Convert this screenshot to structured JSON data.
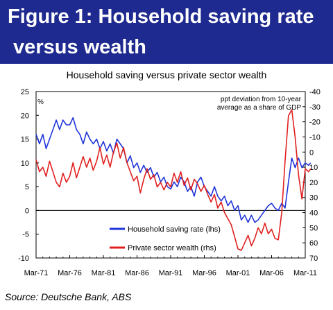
{
  "figure": {
    "heading_line1": "Figure 1: Household saving rate",
    "heading_line2": " versus wealth",
    "source": "Source: Deutsche Bank, ABS"
  },
  "chart_data": {
    "type": "line",
    "title": "Household saving versus private sector wealth",
    "left_axis_unit": "%",
    "right_axis_note": [
      "ppt deviation from 10-year",
      "average as a share of GDP"
    ],
    "left_axis": {
      "min": -10,
      "max": 25,
      "ticks": [
        -10,
        -5,
        0,
        5,
        10,
        15,
        20,
        25
      ]
    },
    "right_axis": {
      "inverted": true,
      "min": -40,
      "max": 70,
      "ticks": [
        -40,
        -30,
        -20,
        -10,
        0,
        10,
        20,
        30,
        40,
        50,
        60,
        70
      ]
    },
    "x_axis": {
      "min": 1971,
      "max": 2011,
      "tick_labels": [
        "Mar-71",
        "Mar-76",
        "Mar-81",
        "Mar-86",
        "Mar-91",
        "Mar-96",
        "Mar-01",
        "Mar-06",
        "Mar-11"
      ]
    },
    "series": [
      {
        "name": "Household saving rate (lhs)",
        "axis": "left",
        "color": "#1f35d8",
        "points": [
          [
            1971.0,
            16
          ],
          [
            1971.5,
            14
          ],
          [
            1972.0,
            16
          ],
          [
            1972.5,
            13
          ],
          [
            1973.0,
            15
          ],
          [
            1973.5,
            17
          ],
          [
            1974.0,
            19
          ],
          [
            1974.5,
            17
          ],
          [
            1975.0,
            19
          ],
          [
            1975.5,
            18
          ],
          [
            1976.0,
            18
          ],
          [
            1976.5,
            19.5
          ],
          [
            1977.0,
            17
          ],
          [
            1977.5,
            16
          ],
          [
            1978.0,
            14
          ],
          [
            1978.5,
            16.5
          ],
          [
            1979.0,
            15
          ],
          [
            1979.5,
            14
          ],
          [
            1980.0,
            15
          ],
          [
            1980.5,
            13
          ],
          [
            1981.0,
            14.5
          ],
          [
            1981.5,
            12.5
          ],
          [
            1982.0,
            14
          ],
          [
            1982.5,
            12
          ],
          [
            1983.0,
            15
          ],
          [
            1983.5,
            14
          ],
          [
            1984.0,
            13
          ],
          [
            1984.5,
            10
          ],
          [
            1985.0,
            11.5
          ],
          [
            1985.5,
            9
          ],
          [
            1986.0,
            10
          ],
          [
            1986.5,
            8
          ],
          [
            1987.0,
            9.5
          ],
          [
            1987.5,
            8
          ],
          [
            1988.0,
            9
          ],
          [
            1988.5,
            7
          ],
          [
            1989.0,
            8
          ],
          [
            1989.5,
            6
          ],
          [
            1990.0,
            7
          ],
          [
            1990.5,
            5
          ],
          [
            1991.0,
            4.5
          ],
          [
            1991.5,
            6
          ],
          [
            1992.0,
            5
          ],
          [
            1992.5,
            7
          ],
          [
            1993.0,
            6
          ],
          [
            1993.5,
            4
          ],
          [
            1994.0,
            5
          ],
          [
            1994.5,
            3
          ],
          [
            1995.0,
            6
          ],
          [
            1995.5,
            7
          ],
          [
            1996.0,
            5
          ],
          [
            1996.5,
            4
          ],
          [
            1997.0,
            3
          ],
          [
            1997.5,
            5
          ],
          [
            1998.0,
            3
          ],
          [
            1998.5,
            2
          ],
          [
            1999.0,
            3
          ],
          [
            1999.5,
            1
          ],
          [
            2000.0,
            2
          ],
          [
            2000.5,
            0
          ],
          [
            2001.0,
            1
          ],
          [
            2001.5,
            -2
          ],
          [
            2002.0,
            -1
          ],
          [
            2002.5,
            -2.5
          ],
          [
            2003.0,
            -1
          ],
          [
            2003.5,
            -2.5
          ],
          [
            2004.0,
            -2
          ],
          [
            2004.5,
            -1
          ],
          [
            2005.0,
            0
          ],
          [
            2005.5,
            1
          ],
          [
            2006.0,
            1.5
          ],
          [
            2006.5,
            0.5
          ],
          [
            2007.0,
            0
          ],
          [
            2007.5,
            1.5
          ],
          [
            2008.0,
            0.5
          ],
          [
            2008.5,
            6
          ],
          [
            2009.0,
            11
          ],
          [
            2009.5,
            9
          ],
          [
            2010.0,
            11
          ],
          [
            2010.5,
            9
          ],
          [
            2011.0,
            10
          ],
          [
            2011.5,
            9.5
          ],
          [
            2011.8,
            10
          ]
        ]
      },
      {
        "name": "Private sector wealth (rhs)",
        "axis": "right",
        "color": "#e0201f",
        "points": [
          [
            1971.0,
            5
          ],
          [
            1971.5,
            13
          ],
          [
            1972.0,
            10
          ],
          [
            1972.5,
            16
          ],
          [
            1973.0,
            6
          ],
          [
            1973.5,
            13
          ],
          [
            1974.0,
            20
          ],
          [
            1974.5,
            23
          ],
          [
            1975.0,
            14
          ],
          [
            1975.5,
            20
          ],
          [
            1976.0,
            16
          ],
          [
            1976.5,
            7
          ],
          [
            1977.0,
            17
          ],
          [
            1977.5,
            10
          ],
          [
            1978.0,
            3
          ],
          [
            1978.5,
            10
          ],
          [
            1979.0,
            4
          ],
          [
            1979.5,
            12
          ],
          [
            1980.0,
            6
          ],
          [
            1980.5,
            -3
          ],
          [
            1981.0,
            8
          ],
          [
            1981.5,
            2
          ],
          [
            1982.0,
            10
          ],
          [
            1982.5,
            0
          ],
          [
            1983.0,
            -6
          ],
          [
            1983.5,
            4
          ],
          [
            1984.0,
            -3
          ],
          [
            1984.5,
            7
          ],
          [
            1985.0,
            13
          ],
          [
            1985.5,
            19
          ],
          [
            1986.0,
            16
          ],
          [
            1986.5,
            27
          ],
          [
            1987.0,
            18
          ],
          [
            1987.5,
            11
          ],
          [
            1988.0,
            18
          ],
          [
            1988.5,
            15
          ],
          [
            1989.0,
            23
          ],
          [
            1989.5,
            20
          ],
          [
            1990.0,
            25
          ],
          [
            1990.5,
            20
          ],
          [
            1991.0,
            23
          ],
          [
            1991.5,
            14
          ],
          [
            1992.0,
            20
          ],
          [
            1992.5,
            13
          ],
          [
            1993.0,
            22
          ],
          [
            1993.5,
            17
          ],
          [
            1994.0,
            25
          ],
          [
            1994.5,
            18
          ],
          [
            1995.0,
            21
          ],
          [
            1995.5,
            26
          ],
          [
            1996.0,
            22
          ],
          [
            1996.5,
            28
          ],
          [
            1997.0,
            33
          ],
          [
            1997.5,
            28
          ],
          [
            1998.0,
            37
          ],
          [
            1998.5,
            33
          ],
          [
            1999.0,
            40
          ],
          [
            1999.5,
            44
          ],
          [
            2000.0,
            48
          ],
          [
            2000.5,
            56
          ],
          [
            2001.0,
            64
          ],
          [
            2001.5,
            65
          ],
          [
            2002.0,
            60
          ],
          [
            2002.5,
            55
          ],
          [
            2003.0,
            62
          ],
          [
            2003.5,
            57
          ],
          [
            2004.0,
            50
          ],
          [
            2004.5,
            54
          ],
          [
            2005.0,
            47
          ],
          [
            2005.5,
            54
          ],
          [
            2006.0,
            51
          ],
          [
            2006.5,
            57
          ],
          [
            2007.0,
            58
          ],
          [
            2007.5,
            40
          ],
          [
            2008.0,
            6
          ],
          [
            2008.5,
            -24
          ],
          [
            2009.0,
            -28
          ],
          [
            2009.5,
            -10
          ],
          [
            2010.0,
            15
          ],
          [
            2010.5,
            31
          ],
          [
            2011.0,
            11
          ],
          [
            2011.5,
            13
          ],
          [
            2011.8,
            11
          ]
        ]
      }
    ],
    "grid": false,
    "legend_position": "bottom-center"
  }
}
